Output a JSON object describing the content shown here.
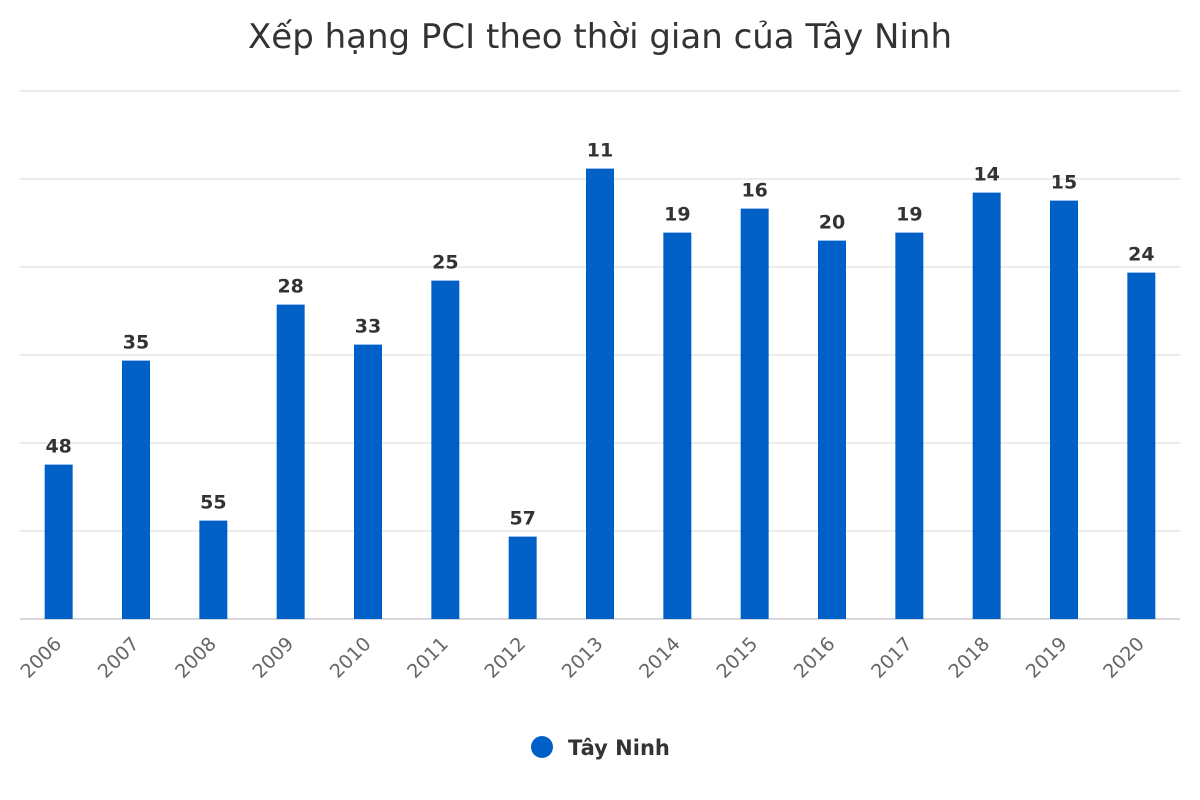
{
  "colors": {
    "bar": "#0060C7",
    "text": "#333333",
    "axis": "#666666",
    "grid": "#e6e6e6"
  },
  "chart_data": {
    "type": "bar",
    "title": "Xếp hạng PCI theo thời gian của Tây Ninh",
    "xlabel": "",
    "ylabel": "",
    "y_axis_reversed": true,
    "y_axis_labels_visible": false,
    "grid": true,
    "legend_position": "bottom-center",
    "categories": [
      "2006",
      "2007",
      "2008",
      "2009",
      "2010",
      "2011",
      "2012",
      "2013",
      "2014",
      "2015",
      "2016",
      "2017",
      "2018",
      "2019",
      "2020"
    ],
    "series": [
      {
        "name": "Tây Ninh",
        "values": [
          48,
          35,
          55,
          28,
          33,
          25,
          57,
          11,
          19,
          16,
          20,
          19,
          14,
          15,
          24
        ]
      }
    ]
  }
}
